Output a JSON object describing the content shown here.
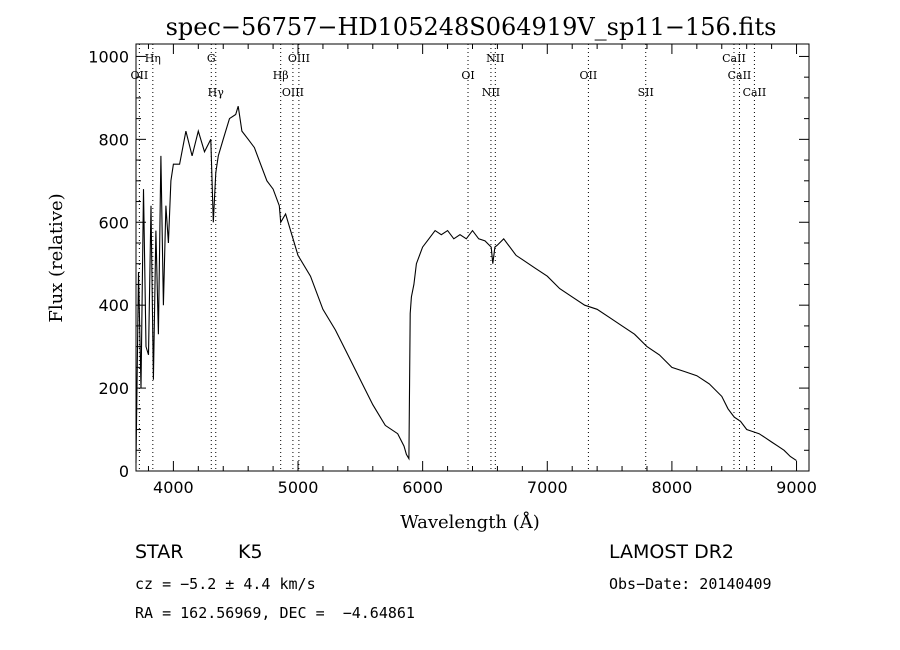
{
  "chart_data": {
    "type": "line",
    "title": "spec−56757−HD105248S064919V_sp11−156.fits",
    "xlabel": "Wavelength (Å)",
    "ylabel": "Flux (relative)",
    "xlim": [
      3700,
      9100
    ],
    "ylim": [
      0,
      1030
    ],
    "xticks": [
      4000,
      5000,
      6000,
      7000,
      8000,
      9000
    ],
    "yticks": [
      0,
      200,
      400,
      600,
      800,
      1000
    ],
    "grid": false,
    "series": [
      {
        "x": [
          3700,
          3720,
          3740,
          3760,
          3780,
          3800,
          3820,
          3840,
          3860,
          3880,
          3900,
          3920,
          3940,
          3960,
          3980,
          4000,
          4050,
          4100,
          4150,
          4200,
          4250,
          4300,
          4320,
          4340,
          4360,
          4400,
          4450,
          4500,
          4520,
          4550,
          4600,
          4650,
          4700,
          4750,
          4800,
          4850,
          4861,
          4900,
          4950,
          5000,
          5100,
          5200,
          5300,
          5400,
          5500,
          5600,
          5700,
          5800,
          5850,
          5870,
          5890,
          5900,
          5910,
          5930,
          5950,
          6000,
          6050,
          6100,
          6150,
          6200,
          6250,
          6300,
          6350,
          6400,
          6450,
          6500,
          6550,
          6563,
          6580,
          6600,
          6650,
          6700,
          6750,
          6800,
          6900,
          7000,
          7100,
          7200,
          7300,
          7400,
          7500,
          7600,
          7700,
          7800,
          7900,
          8000,
          8100,
          8200,
          8300,
          8400,
          8450,
          8500,
          8550,
          8600,
          8650,
          8700,
          8750,
          8800,
          8850,
          8900,
          8950,
          9000
        ],
        "y": [
          20,
          480,
          200,
          680,
          300,
          280,
          640,
          220,
          580,
          330,
          760,
          400,
          640,
          550,
          700,
          740,
          740,
          820,
          760,
          820,
          770,
          800,
          600,
          720,
          760,
          800,
          850,
          860,
          880,
          820,
          800,
          780,
          740,
          700,
          680,
          640,
          600,
          620,
          570,
          520,
          470,
          390,
          340,
          280,
          220,
          160,
          110,
          90,
          60,
          40,
          30,
          380,
          420,
          450,
          500,
          540,
          560,
          580,
          570,
          580,
          560,
          570,
          560,
          580,
          560,
          555,
          540,
          500,
          540,
          545,
          560,
          540,
          520,
          510,
          490,
          470,
          440,
          420,
          400,
          390,
          370,
          350,
          330,
          300,
          280,
          250,
          240,
          230,
          210,
          180,
          150,
          130,
          120,
          100,
          95,
          90,
          80,
          70,
          60,
          50,
          35,
          25
        ]
      }
    ],
    "line_markers": [
      {
        "label": "Hη",
        "x": 3835
      },
      {
        "label": "OII",
        "x": 3727
      },
      {
        "label": "Hγ",
        "x": 4340
      },
      {
        "label": "G",
        "x": 4304
      },
      {
        "label": "Hβ",
        "x": 4861
      },
      {
        "label": "OIII",
        "x": 4959
      },
      {
        "label": "OIII",
        "x": 5007
      },
      {
        "label": "OI",
        "x": 6364
      },
      {
        "label": "NII",
        "x": 6548
      },
      {
        "label": "NII",
        "x": 6583
      },
      {
        "label": "OII",
        "x": 7330
      },
      {
        "label": "SII",
        "x": 7790
      },
      {
        "label": "CaII",
        "x": 8498
      },
      {
        "label": "CaII",
        "x": 8542
      },
      {
        "label": "CaII",
        "x": 8662
      }
    ]
  },
  "info": {
    "class": "STAR",
    "subclass": "K5",
    "cz": "cz = −5.2 ± 4.4 km/s",
    "coords": "RA = 162.56969, DEC =  −4.64861",
    "survey": "LAMOST DR2",
    "obsdate": "Obs−Date: 20140409"
  }
}
